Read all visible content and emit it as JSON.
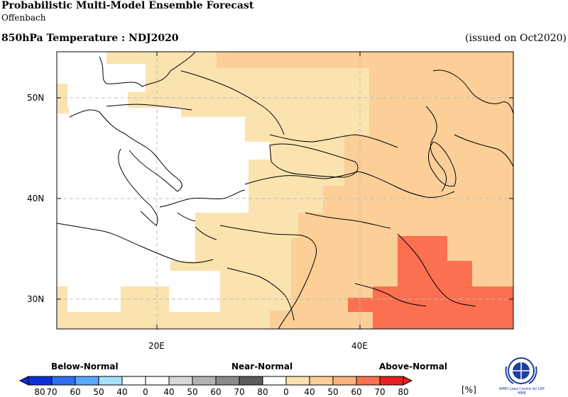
{
  "header": {
    "title": "Probabilistic Multi-Model Ensemble Forecast",
    "subtitle": "Offenbach",
    "variable": "850hPa Temperature : NDJ2020",
    "issued": "(issued on Oct2020)"
  },
  "map": {
    "region": "Europe / Middle East",
    "lat_labels": [
      "50N",
      "40N",
      "30N"
    ],
    "lon_labels": [
      "20E",
      "40E"
    ],
    "colors": {
      "above_40_50": "#fbe3b0",
      "above_50_60": "#fccf98",
      "above_70_80": "#fb7050",
      "normal": "#ffffff",
      "grid": "#bdbdbd",
      "coast": "#000000"
    }
  },
  "legend": {
    "categories": [
      "Below-Normal",
      "Near-Normal",
      "Above-Normal"
    ],
    "unit": "[%]",
    "ticks": [
      "80",
      "70",
      "60",
      "50",
      "40",
      "0",
      "40",
      "50",
      "60",
      "70",
      "80",
      "0",
      "40",
      "50",
      "60",
      "70",
      "80"
    ],
    "colors": [
      "#0b30d8",
      "#2d6ef2",
      "#5aa8ff",
      "#a6e1ff",
      "#ffffff",
      "#ffffff",
      "#d8d8d8",
      "#b3b3b3",
      "#8a8a8a",
      "#5b5b5b",
      "#ffffff",
      "#fbe3b0",
      "#fccf98",
      "#fcb27a",
      "#fb7050",
      "#e82020"
    ]
  },
  "logo": {
    "text": "WMO Lead Centre for LRF MME"
  }
}
